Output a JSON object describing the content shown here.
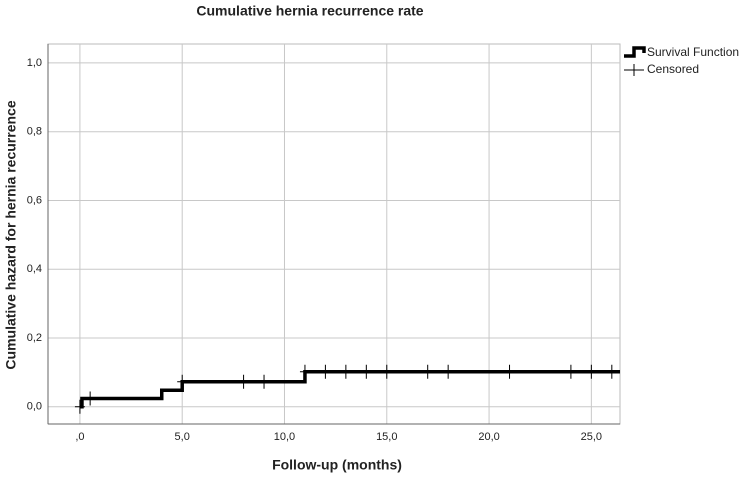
{
  "chart_data": {
    "type": "line",
    "title": "Cumulative hernia recurrence rate",
    "x_label": "Follow-up (months)",
    "y_label": "Cumulative hazard for hernia recurrence",
    "xlim": [
      -1.56,
      26.4
    ],
    "ylim": [
      -0.05,
      1.055
    ],
    "xticks": [
      {
        "value": 0,
        "label": ",0"
      },
      {
        "value": 5,
        "label": "5,0"
      },
      {
        "value": 10,
        "label": "10,0"
      },
      {
        "value": 15,
        "label": "15,0"
      },
      {
        "value": 20,
        "label": "20,0"
      },
      {
        "value": 25,
        "label": "25,0"
      }
    ],
    "yticks": [
      {
        "value": 0,
        "label": "0,0"
      },
      {
        "value": 0.2,
        "label": "0,2"
      },
      {
        "value": 0.4,
        "label": "0,4"
      },
      {
        "value": 0.6,
        "label": "0,6"
      },
      {
        "value": 0.8,
        "label": "0,8"
      },
      {
        "value": 1.0,
        "label": "1,0"
      }
    ],
    "grid": true,
    "legend": "top-right-outside",
    "series": [
      {
        "name": "Survival Function",
        "color": "#000000",
        "style": "step",
        "x": [
          0,
          0.1,
          4,
          5,
          11,
          26.4
        ],
        "values": [
          0,
          0.024,
          0.048,
          0.073,
          0.102,
          0.102
        ]
      },
      {
        "name": "Censored",
        "color": "#000000",
        "style": "cross",
        "x": [
          0,
          0.5,
          5,
          8,
          9,
          11,
          12,
          13,
          14,
          15,
          17,
          18,
          21,
          24,
          25,
          26
        ],
        "values": [
          0,
          0.024,
          0.073,
          0.073,
          0.073,
          0.102,
          0.102,
          0.102,
          0.102,
          0.102,
          0.102,
          0.102,
          0.102,
          0.102,
          0.102,
          0.102
        ]
      }
    ]
  }
}
